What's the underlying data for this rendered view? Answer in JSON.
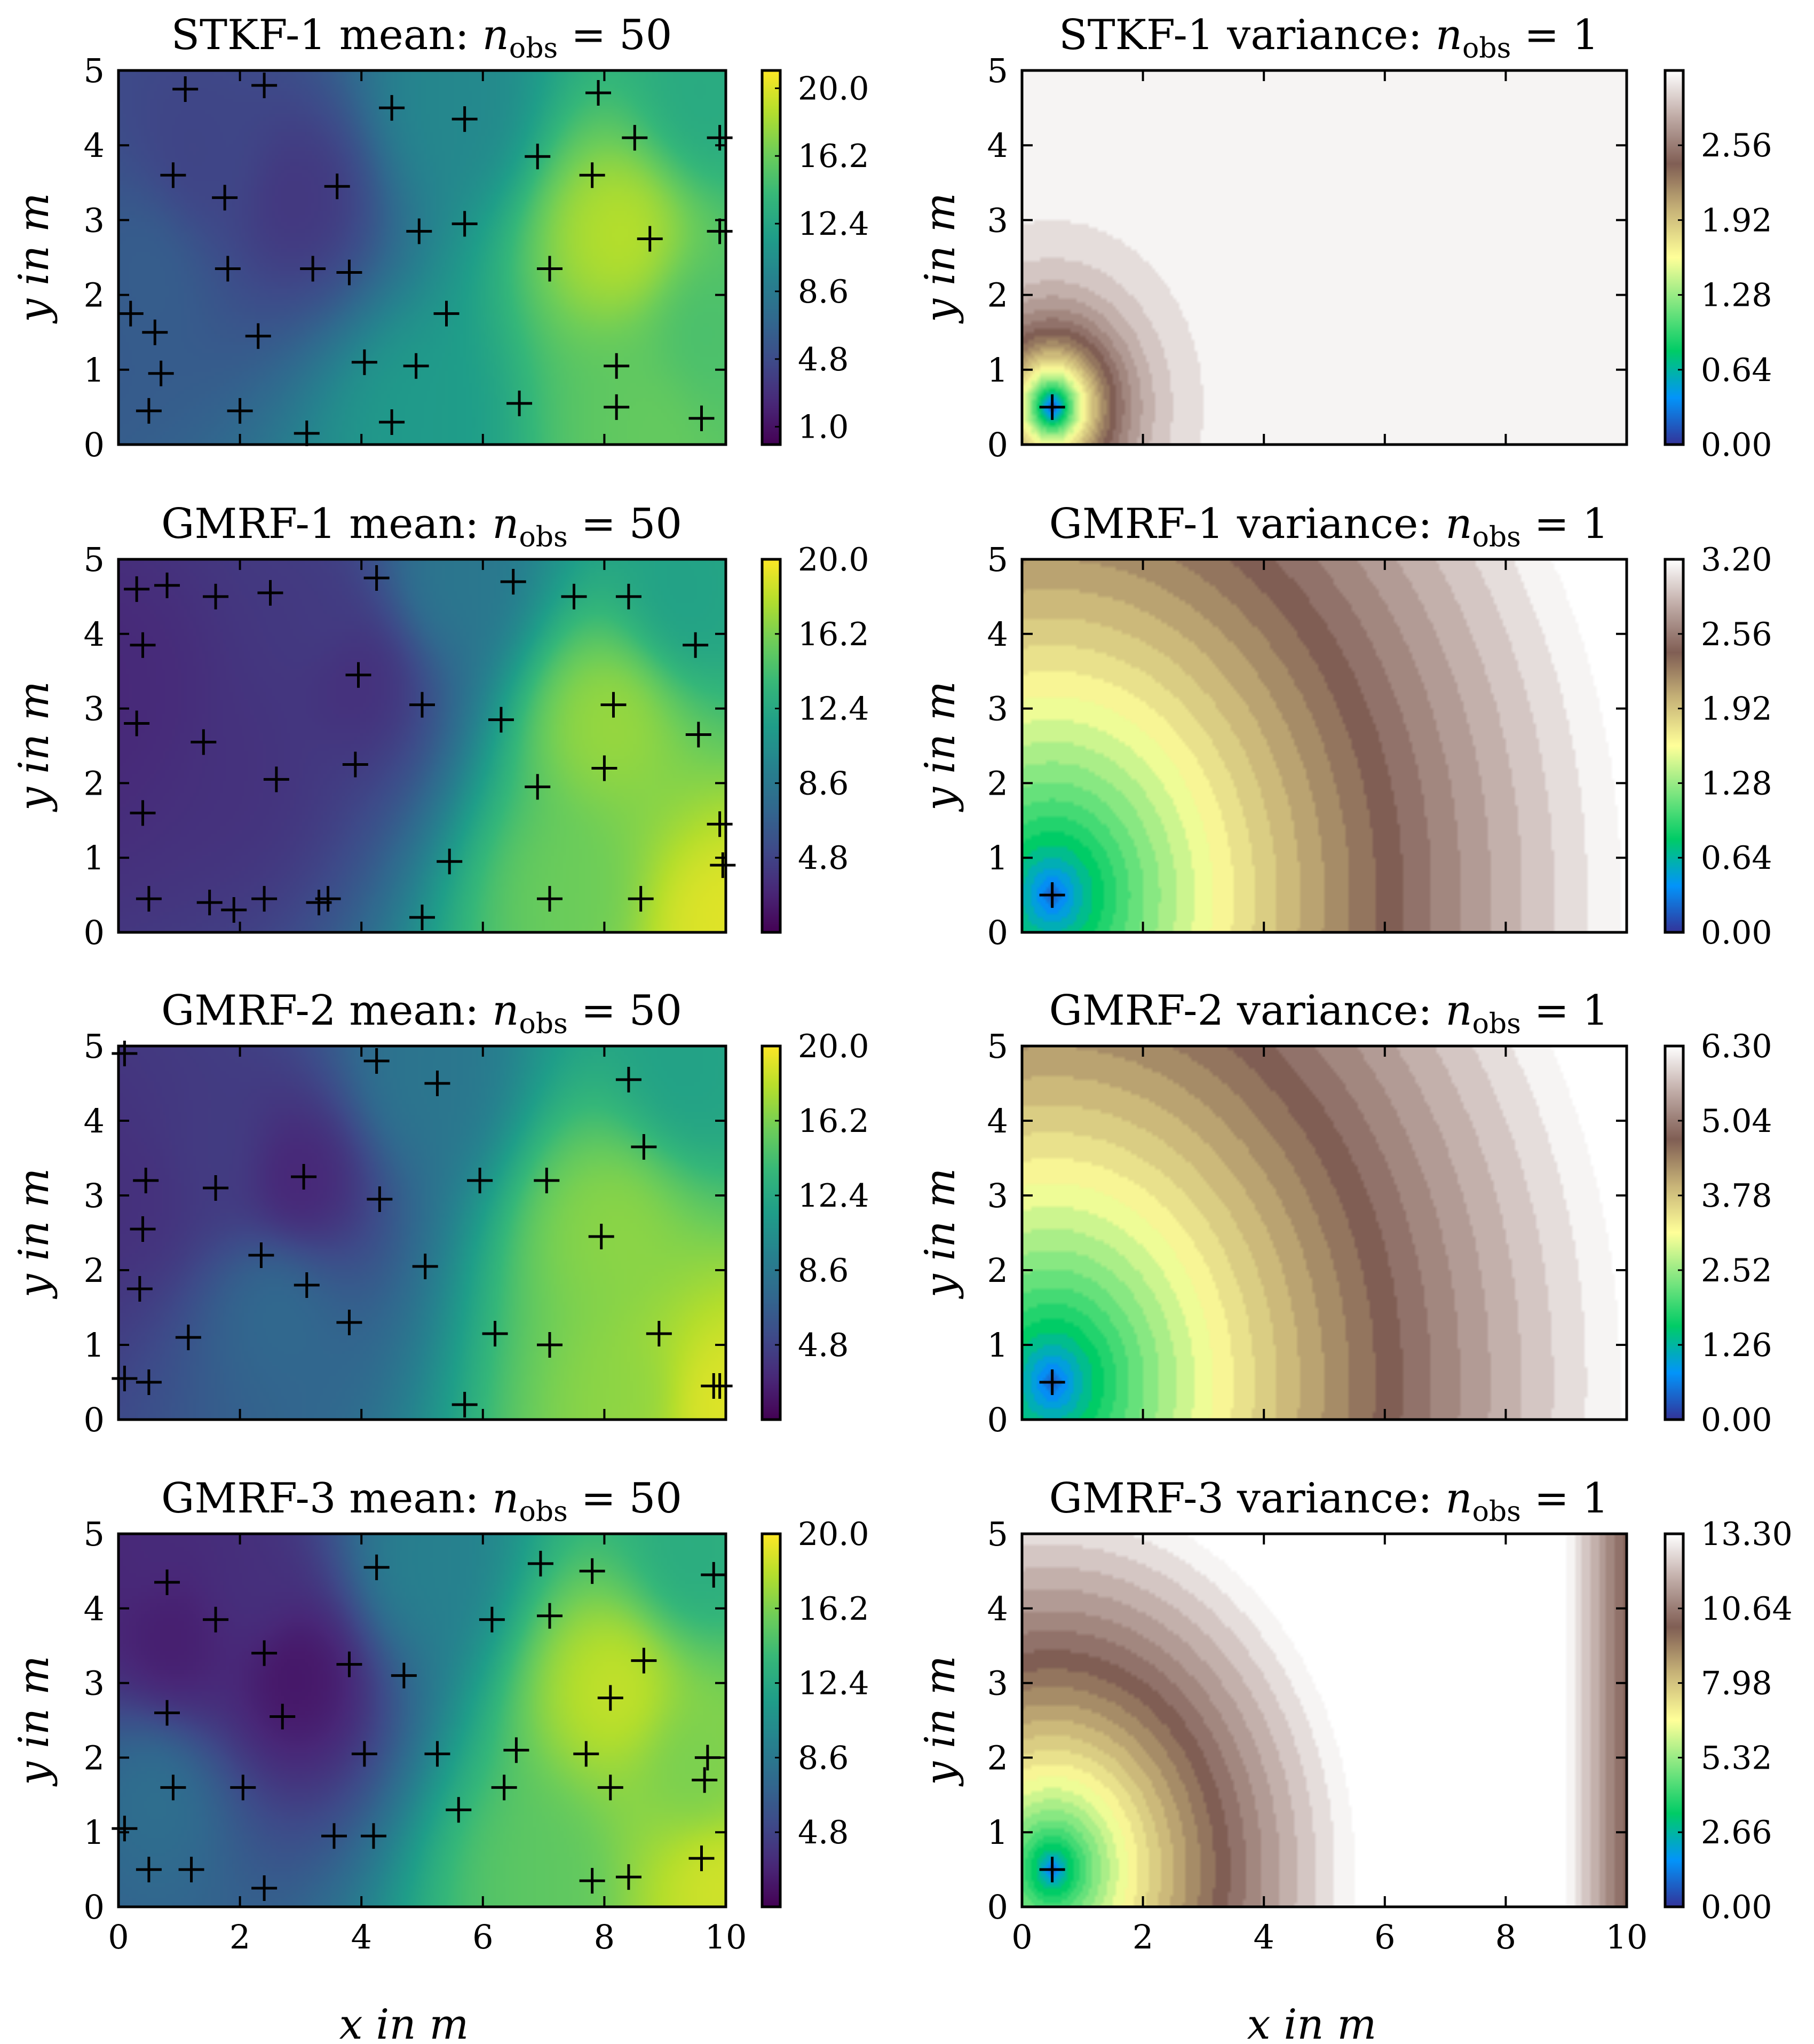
{
  "figure": {
    "xlabel": "x in m",
    "ylabel": "y in m"
  },
  "chart_data": [
    {
      "type": "heatmap",
      "kind": "mean",
      "colormap": "viridis",
      "title_main": "STKF-1 mean:",
      "title_var": "n",
      "title_sub": "obs",
      "title_rhs": "= 50",
      "xlim": [
        0,
        10
      ],
      "ylim": [
        0,
        5
      ],
      "xticks": [
        "0",
        "2",
        "4",
        "6",
        "8",
        "10"
      ],
      "yticks": [
        "0",
        "1",
        "2",
        "3",
        "4",
        "5"
      ],
      "colorbar_range": [
        0.0,
        21.0
      ],
      "colorbar_ticks": [
        "1.0",
        "4.8",
        "8.6",
        "12.4",
        "16.2",
        "20.0"
      ],
      "colorbar_tick_values": [
        1.0,
        4.8,
        8.6,
        12.4,
        16.2,
        20.0
      ],
      "field_features": [
        {
          "x": 0.3,
          "y": 2.4,
          "v": 6.5
        },
        {
          "x": 3.0,
          "y": 3.3,
          "v": 2.5
        },
        {
          "x": 1.5,
          "y": 3.8,
          "v": 4.0
        },
        {
          "x": 8.2,
          "y": 2.8,
          "v": 19.5
        },
        {
          "x": 8.5,
          "y": 0.2,
          "v": 16.0
        },
        {
          "x": 5.0,
          "y": 0.3,
          "v": 11.5
        },
        {
          "x": 9.8,
          "y": 4.6,
          "v": 12.0
        },
        {
          "x": 9.8,
          "y": 1.5,
          "v": 14.5
        },
        {
          "x": 5.5,
          "y": 4.5,
          "v": 9.5
        }
      ],
      "observations": [
        [
          1.1,
          4.75
        ],
        [
          2.4,
          4.8
        ],
        [
          4.5,
          4.5
        ],
        [
          5.7,
          4.35
        ],
        [
          7.9,
          4.7
        ],
        [
          8.5,
          4.1
        ],
        [
          9.9,
          4.1
        ],
        [
          0.9,
          3.6
        ],
        [
          1.75,
          3.3
        ],
        [
          3.6,
          3.45
        ],
        [
          6.9,
          3.85
        ],
        [
          7.8,
          3.6
        ],
        [
          4.95,
          2.85
        ],
        [
          5.7,
          2.95
        ],
        [
          8.75,
          2.75
        ],
        [
          9.9,
          2.85
        ],
        [
          1.8,
          2.35
        ],
        [
          3.2,
          2.35
        ],
        [
          3.8,
          2.3
        ],
        [
          7.1,
          2.35
        ],
        [
          0.2,
          1.75
        ],
        [
          0.6,
          1.5
        ],
        [
          2.3,
          1.45
        ],
        [
          5.4,
          1.75
        ],
        [
          0.7,
          0.95
        ],
        [
          4.05,
          1.1
        ],
        [
          4.9,
          1.05
        ],
        [
          8.2,
          1.05
        ],
        [
          0.5,
          0.45
        ],
        [
          2.0,
          0.45
        ],
        [
          3.1,
          0.15
        ],
        [
          4.5,
          0.3
        ],
        [
          6.6,
          0.55
        ],
        [
          8.2,
          0.5
        ],
        [
          9.6,
          0.35
        ]
      ]
    },
    {
      "type": "heatmap",
      "kind": "variance",
      "colormap": "terrain",
      "title_main": "STKF-1 variance:",
      "title_var": "n",
      "title_sub": "obs",
      "title_rhs": "= 1",
      "xlim": [
        0,
        10
      ],
      "ylim": [
        0,
        5
      ],
      "xticks": [
        "0",
        "2",
        "4",
        "6",
        "8",
        "10"
      ],
      "yticks": [
        "0",
        "1",
        "2",
        "3",
        "4",
        "5"
      ],
      "colorbar_range": [
        0.0,
        3.2
      ],
      "colorbar_ticks": [
        "0.00",
        "0.64",
        "1.28",
        "1.92",
        "2.56"
      ],
      "colorbar_tick_values": [
        0.0,
        0.64,
        1.28,
        1.92,
        2.56
      ],
      "field_model": {
        "center": [
          0.5,
          0.5
        ],
        "sill": 3.2,
        "range_m": 2.2,
        "levels": 30
      },
      "observations": [
        [
          0.5,
          0.5
        ]
      ]
    },
    {
      "type": "heatmap",
      "kind": "mean",
      "colormap": "viridis",
      "title_main": "GMRF-1 mean:",
      "title_var": "n",
      "title_sub": "obs",
      "title_rhs": "= 50",
      "xlim": [
        0,
        10
      ],
      "ylim": [
        0,
        5
      ],
      "xticks": [
        "0",
        "2",
        "4",
        "6",
        "8",
        "10"
      ],
      "yticks": [
        "0",
        "1",
        "2",
        "3",
        "4",
        "5"
      ],
      "colorbar_range": [
        1.0,
        20.0
      ],
      "colorbar_ticks": [
        "4.8",
        "8.6",
        "12.4",
        "16.2",
        "20.0"
      ],
      "colorbar_tick_values": [
        4.8,
        8.6,
        12.4,
        16.2,
        20.0
      ],
      "field_features": [
        {
          "x": 0.5,
          "y": 3.2,
          "v": 3.0
        },
        {
          "x": 2.2,
          "y": 2.2,
          "v": 3.2
        },
        {
          "x": 3.2,
          "y": 4.2,
          "v": 3.5
        },
        {
          "x": 4.0,
          "y": 3.4,
          "v": 2.5
        },
        {
          "x": 8.0,
          "y": 2.8,
          "v": 17.5
        },
        {
          "x": 9.8,
          "y": 0.1,
          "v": 19.5
        },
        {
          "x": 7.5,
          "y": 0.5,
          "v": 16.0
        },
        {
          "x": 9.5,
          "y": 4.5,
          "v": 11.0
        },
        {
          "x": 5.5,
          "y": 4.7,
          "v": 8.0
        }
      ],
      "observations": [
        [
          0.3,
          4.6
        ],
        [
          0.8,
          4.65
        ],
        [
          1.6,
          4.5
        ],
        [
          2.5,
          4.55
        ],
        [
          4.25,
          4.75
        ],
        [
          6.5,
          4.7
        ],
        [
          7.5,
          4.5
        ],
        [
          8.4,
          4.5
        ],
        [
          0.4,
          3.85
        ],
        [
          3.95,
          3.45
        ],
        [
          9.5,
          3.85
        ],
        [
          0.3,
          2.8
        ],
        [
          5.0,
          3.05
        ],
        [
          6.3,
          2.85
        ],
        [
          8.15,
          3.05
        ],
        [
          1.4,
          2.55
        ],
        [
          2.6,
          2.05
        ],
        [
          3.9,
          2.25
        ],
        [
          6.9,
          1.95
        ],
        [
          8.0,
          2.2
        ],
        [
          9.55,
          2.65
        ],
        [
          0.4,
          1.6
        ],
        [
          5.45,
          0.95
        ],
        [
          9.9,
          1.45
        ],
        [
          9.95,
          0.9
        ],
        [
          0.5,
          0.45
        ],
        [
          1.5,
          0.4
        ],
        [
          1.9,
          0.3
        ],
        [
          2.4,
          0.45
        ],
        [
          3.3,
          0.4
        ],
        [
          3.45,
          0.45
        ],
        [
          5.0,
          0.2
        ],
        [
          7.1,
          0.45
        ],
        [
          8.6,
          0.45
        ]
      ]
    },
    {
      "type": "heatmap",
      "kind": "variance",
      "colormap": "terrain",
      "title_main": "GMRF-1 variance:",
      "title_var": "n",
      "title_sub": "obs",
      "title_rhs": "= 1",
      "xlim": [
        0,
        10
      ],
      "ylim": [
        0,
        5
      ],
      "xticks": [
        "0",
        "2",
        "4",
        "6",
        "8",
        "10"
      ],
      "yticks": [
        "0",
        "1",
        "2",
        "3",
        "4",
        "5"
      ],
      "colorbar_range": [
        0.0,
        3.2
      ],
      "colorbar_ticks": [
        "0.00",
        "0.64",
        "1.28",
        "1.92",
        "2.56",
        "3.20"
      ],
      "colorbar_tick_values": [
        0.0,
        0.64,
        1.28,
        1.92,
        2.56,
        3.2
      ],
      "field_model": {
        "center": [
          0.5,
          0.5
        ],
        "sill": 3.4,
        "range_m": 10.5,
        "levels": 30
      },
      "observations": [
        [
          0.5,
          0.5
        ]
      ]
    },
    {
      "type": "heatmap",
      "kind": "mean",
      "colormap": "viridis",
      "title_main": "GMRF-2 mean:",
      "title_var": "n",
      "title_sub": "obs",
      "title_rhs": "= 50",
      "xlim": [
        0,
        10
      ],
      "ylim": [
        0,
        5
      ],
      "xticks": [
        "0",
        "2",
        "4",
        "6",
        "8",
        "10"
      ],
      "yticks": [
        "0",
        "1",
        "2",
        "3",
        "4",
        "5"
      ],
      "colorbar_range": [
        1.0,
        20.0
      ],
      "colorbar_ticks": [
        "4.8",
        "8.6",
        "12.4",
        "16.2",
        "20.0"
      ],
      "colorbar_tick_values": [
        4.8,
        8.6,
        12.4,
        16.2,
        20.0
      ],
      "field_features": [
        {
          "x": 0.4,
          "y": 3.0,
          "v": 3.5
        },
        {
          "x": 3.0,
          "y": 3.2,
          "v": 2.0
        },
        {
          "x": 1.5,
          "y": 3.6,
          "v": 4.0
        },
        {
          "x": 2.5,
          "y": 1.5,
          "v": 7.5
        },
        {
          "x": 8.0,
          "y": 2.5,
          "v": 17.0
        },
        {
          "x": 9.8,
          "y": 0.2,
          "v": 19.5
        },
        {
          "x": 8.5,
          "y": 0.3,
          "v": 17.0
        },
        {
          "x": 9.6,
          "y": 4.7,
          "v": 11.0
        },
        {
          "x": 5.0,
          "y": 4.6,
          "v": 8.0
        }
      ],
      "observations": [
        [
          0.1,
          4.9
        ],
        [
          4.25,
          4.8
        ],
        [
          5.25,
          4.5
        ],
        [
          8.4,
          4.55
        ],
        [
          8.65,
          3.65
        ],
        [
          0.45,
          3.2
        ],
        [
          1.6,
          3.1
        ],
        [
          3.05,
          3.25
        ],
        [
          4.3,
          2.95
        ],
        [
          5.95,
          3.2
        ],
        [
          7.05,
          3.2
        ],
        [
          0.4,
          2.55
        ],
        [
          2.35,
          2.2
        ],
        [
          5.05,
          2.05
        ],
        [
          7.95,
          2.45
        ],
        [
          0.35,
          1.75
        ],
        [
          3.1,
          1.8
        ],
        [
          1.15,
          1.1
        ],
        [
          3.8,
          1.3
        ],
        [
          6.2,
          1.15
        ],
        [
          7.1,
          1.0
        ],
        [
          8.9,
          1.15
        ],
        [
          0.1,
          0.55
        ],
        [
          0.5,
          0.5
        ],
        [
          5.7,
          0.2
        ],
        [
          9.9,
          0.45
        ],
        [
          9.8,
          0.45
        ]
      ]
    },
    {
      "type": "heatmap",
      "kind": "variance",
      "colormap": "terrain",
      "title_main": "GMRF-2 variance:",
      "title_var": "n",
      "title_sub": "obs",
      "title_rhs": "= 1",
      "xlim": [
        0,
        10
      ],
      "ylim": [
        0,
        5
      ],
      "xticks": [
        "0",
        "2",
        "4",
        "6",
        "8",
        "10"
      ],
      "yticks": [
        "0",
        "1",
        "2",
        "3",
        "4",
        "5"
      ],
      "colorbar_range": [
        0.0,
        6.3
      ],
      "colorbar_ticks": [
        "0.00",
        "1.26",
        "2.52",
        "3.78",
        "5.04",
        "6.30"
      ],
      "colorbar_tick_values": [
        0.0,
        1.26,
        2.52,
        3.78,
        5.04,
        6.3
      ],
      "field_model": {
        "center": [
          0.5,
          0.5
        ],
        "sill": 6.7,
        "range_m": 10.5,
        "levels": 30
      },
      "observations": [
        [
          0.5,
          0.5
        ]
      ]
    },
    {
      "type": "heatmap",
      "kind": "mean",
      "colormap": "viridis",
      "title_main": "GMRF-3 mean:",
      "title_var": "n",
      "title_sub": "obs",
      "title_rhs": "= 50",
      "xlim": [
        0,
        10
      ],
      "ylim": [
        0,
        5
      ],
      "xticks": [
        "0",
        "2",
        "4",
        "6",
        "8",
        "10"
      ],
      "yticks": [
        "0",
        "1",
        "2",
        "3",
        "4",
        "5"
      ],
      "colorbar_range": [
        1.0,
        20.0
      ],
      "colorbar_ticks": [
        "4.8",
        "8.6",
        "12.4",
        "16.2",
        "20.0"
      ],
      "colorbar_tick_values": [
        4.8,
        8.6,
        12.4,
        16.2,
        20.0
      ],
      "field_features": [
        {
          "x": 1.0,
          "y": 3.6,
          "v": 2.0
        },
        {
          "x": 3.0,
          "y": 3.1,
          "v": 1.0
        },
        {
          "x": 2.0,
          "y": 4.3,
          "v": 3.0
        },
        {
          "x": 0.3,
          "y": 4.8,
          "v": 3.0
        },
        {
          "x": 0.5,
          "y": 1.5,
          "v": 8.5
        },
        {
          "x": 8.1,
          "y": 2.9,
          "v": 19.0
        },
        {
          "x": 9.8,
          "y": 0.3,
          "v": 19.0
        },
        {
          "x": 7.0,
          "y": 0.4,
          "v": 15.5
        },
        {
          "x": 9.6,
          "y": 1.8,
          "v": 16.0
        },
        {
          "x": 9.6,
          "y": 4.7,
          "v": 12.0
        },
        {
          "x": 5.0,
          "y": 4.6,
          "v": 9.0
        }
      ],
      "observations": [
        [
          0.8,
          4.35
        ],
        [
          1.6,
          3.85
        ],
        [
          2.4,
          3.4
        ],
        [
          4.25,
          4.55
        ],
        [
          6.15,
          3.85
        ],
        [
          6.95,
          4.6
        ],
        [
          7.1,
          3.9
        ],
        [
          7.8,
          4.5
        ],
        [
          9.8,
          4.45
        ],
        [
          0.8,
          2.6
        ],
        [
          2.7,
          2.55
        ],
        [
          3.8,
          3.25
        ],
        [
          4.7,
          3.1
        ],
        [
          8.65,
          3.3
        ],
        [
          8.1,
          2.8
        ],
        [
          4.05,
          2.05
        ],
        [
          5.25,
          2.05
        ],
        [
          6.55,
          2.1
        ],
        [
          7.7,
          2.05
        ],
        [
          9.7,
          2.0
        ],
        [
          9.65,
          1.7
        ],
        [
          0.9,
          1.6
        ],
        [
          2.05,
          1.6
        ],
        [
          5.6,
          1.3
        ],
        [
          6.35,
          1.6
        ],
        [
          8.1,
          1.6
        ],
        [
          0.1,
          1.05
        ],
        [
          3.55,
          0.95
        ],
        [
          4.2,
          0.95
        ],
        [
          0.5,
          0.5
        ],
        [
          1.2,
          0.5
        ],
        [
          2.4,
          0.25
        ],
        [
          7.8,
          0.35
        ],
        [
          8.4,
          0.4
        ],
        [
          9.6,
          0.65
        ]
      ]
    },
    {
      "type": "heatmap",
      "kind": "variance",
      "colormap": "terrain",
      "title_main": "GMRF-3 variance:",
      "title_var": "n",
      "title_sub": "obs",
      "title_rhs": "= 1",
      "xlim": [
        0,
        10
      ],
      "ylim": [
        0,
        5
      ],
      "xticks": [
        "0",
        "2",
        "4",
        "6",
        "8",
        "10"
      ],
      "yticks": [
        "0",
        "1",
        "2",
        "3",
        "4",
        "5"
      ],
      "colorbar_range": [
        0.0,
        13.3
      ],
      "colorbar_ticks": [
        "0.00",
        "2.66",
        "5.32",
        "7.98",
        "10.64",
        "13.30"
      ],
      "colorbar_tick_values": [
        0.0,
        2.66,
        5.32,
        7.98,
        10.64,
        13.3
      ],
      "field_model": {
        "center": [
          0.5,
          0.5
        ],
        "sill": 13.3,
        "range_m": 5.0,
        "levels": 30,
        "edge_drop": true
      },
      "observations": [
        [
          0.5,
          0.5
        ]
      ]
    }
  ]
}
